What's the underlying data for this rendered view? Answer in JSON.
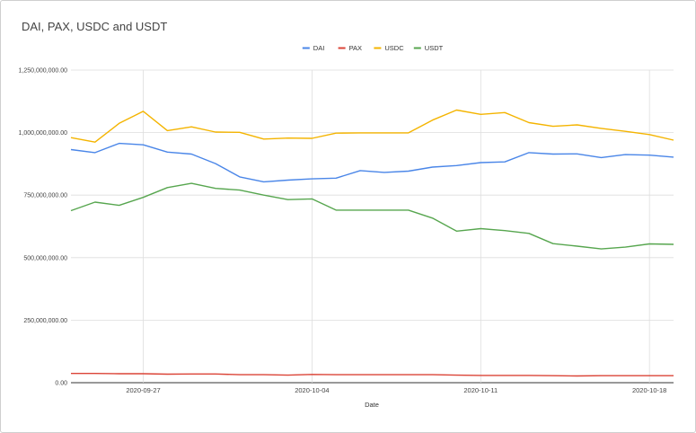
{
  "chart_data": {
    "type": "line",
    "title": "DAI, PAX, USDC and USDT",
    "xlabel": "Date",
    "ylabel": "",
    "ylim": [
      0,
      1250000000
    ],
    "yticks": [
      0,
      250000000,
      500000000,
      750000000,
      1000000000,
      1250000000
    ],
    "ytick_labels": [
      "0.00",
      "250,000,000.00",
      "500,000,000.00",
      "750,000,000.00",
      "1,000,000,000.00",
      "1,250,000,000.00"
    ],
    "xticks": [
      "2020-09-27",
      "2020-10-04",
      "2020-10-11",
      "2020-10-18"
    ],
    "x": [
      "2020-09-24",
      "2020-09-25",
      "2020-09-26",
      "2020-09-27",
      "2020-09-28",
      "2020-09-29",
      "2020-09-30",
      "2020-10-01",
      "2020-10-02",
      "2020-10-03",
      "2020-10-04",
      "2020-10-05",
      "2020-10-06",
      "2020-10-07",
      "2020-10-08",
      "2020-10-09",
      "2020-10-10",
      "2020-10-11",
      "2020-10-12",
      "2020-10-13",
      "2020-10-14",
      "2020-10-15",
      "2020-10-16",
      "2020-10-17",
      "2020-10-18",
      "2020-10-19"
    ],
    "grid": true,
    "legend_position": "top",
    "series": [
      {
        "name": "DAI",
        "color": "#4a86e8",
        "values": [
          932000000,
          920000000,
          957000000,
          951000000,
          922000000,
          914000000,
          876000000,
          823000000,
          803000000,
          810000000,
          815000000,
          818000000,
          848000000,
          841000000,
          846000000,
          862000000,
          868000000,
          880000000,
          883000000,
          920000000,
          914000000,
          915000000,
          900000000,
          912000000,
          910000000,
          902000000
        ]
      },
      {
        "name": "PAX",
        "color": "#db4437",
        "values": [
          37000000,
          37000000,
          36000000,
          36000000,
          34000000,
          35000000,
          35000000,
          32000000,
          32000000,
          30000000,
          33000000,
          32000000,
          32000000,
          32000000,
          32000000,
          32000000,
          30000000,
          29000000,
          29000000,
          29000000,
          28000000,
          27000000,
          28000000,
          28000000,
          28000000,
          28000000
        ]
      },
      {
        "name": "USDC",
        "color": "#f4b400",
        "values": [
          980000000,
          962000000,
          1037000000,
          1085000000,
          1008000000,
          1023000000,
          1002000000,
          1001000000,
          974000000,
          978000000,
          977000000,
          998000000,
          999000000,
          999000000,
          999000000,
          1050000000,
          1090000000,
          1073000000,
          1080000000,
          1040000000,
          1025000000,
          1031000000,
          1017000000,
          1005000000,
          992000000,
          970000000
        ]
      },
      {
        "name": "USDT",
        "color": "#57a64f",
        "values": [
          688000000,
          722000000,
          709000000,
          741000000,
          780000000,
          797000000,
          777000000,
          770000000,
          750000000,
          732000000,
          735000000,
          690000000,
          690000000,
          690000000,
          690000000,
          658000000,
          606000000,
          616000000,
          608000000,
          597000000,
          556000000,
          546000000,
          535000000,
          542000000,
          555000000,
          553000000
        ]
      }
    ]
  }
}
